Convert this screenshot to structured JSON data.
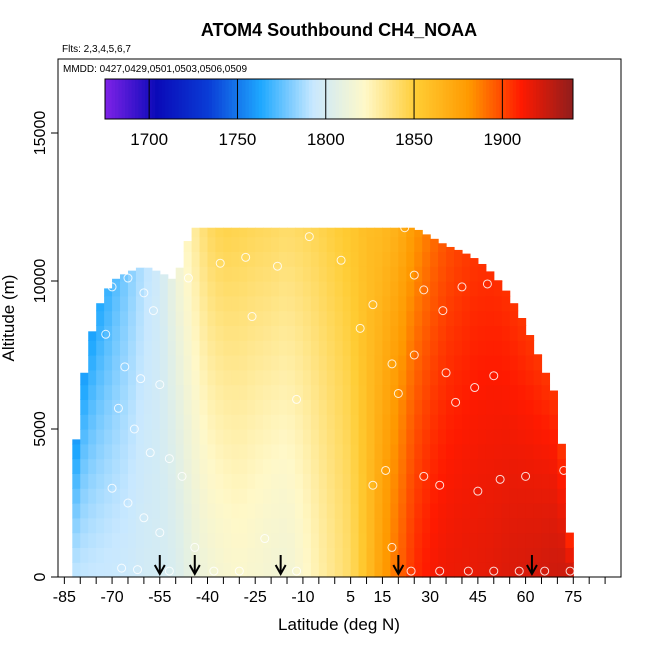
{
  "chart_data": {
    "type": "heatmap",
    "title": "ATOM4 Southbound CH4_NOAA",
    "annotations": [
      "Flts: 2,3,4,5,6,7",
      "MMDD: 0427,0429,0501,0503,0506,0509"
    ],
    "xlabel": "Latitude (deg N)",
    "ylabel": "Altitude (m)",
    "xlim": [
      -87,
      90
    ],
    "ylim": [
      0,
      17500
    ],
    "x_ticks": [
      -85,
      -70,
      -55,
      -40,
      -25,
      -10,
      5,
      15,
      30,
      45,
      60,
      75
    ],
    "x_minor_ticks": [
      -80,
      -75,
      -65,
      -60,
      -50,
      -45,
      -35,
      -30,
      -20,
      -15,
      -5,
      0,
      10,
      20,
      25,
      35,
      40,
      50,
      55,
      65,
      70,
      80,
      85
    ],
    "y_ticks": [
      0,
      5000,
      10000,
      15000
    ],
    "grid": false,
    "colorbar": {
      "min": 1675,
      "max": 1940,
      "ticks": [
        1700,
        1750,
        1800,
        1850,
        1900
      ],
      "colors": [
        "#7f22e8",
        "#0a0ab8",
        "#0a3dd6",
        "#1ea8ff",
        "#c8e8ff",
        "#fff8c8",
        "#ffcc33",
        "#ff9900",
        "#ff1a00",
        "#8f1d1d"
      ]
    },
    "section_profile": {
      "latitude": [
        -85,
        -80,
        -75,
        -70,
        -65,
        -60,
        -55,
        -50,
        -45,
        -40,
        -35,
        -30,
        -25,
        -20,
        -15,
        -10,
        -5,
        0,
        5,
        10,
        15,
        20,
        25,
        30,
        35,
        40,
        45,
        50,
        55,
        60,
        65,
        70,
        75
      ],
      "top_altitude": [
        0,
        6200,
        9000,
        10000,
        10300,
        10500,
        10300,
        10000,
        11800,
        11800,
        11800,
        11800,
        11800,
        11800,
        11800,
        11800,
        11800,
        11800,
        11800,
        11800,
        11800,
        11800,
        11800,
        11500,
        11200,
        11000,
        10700,
        10200,
        9500,
        8500,
        7200,
        6000,
        0
      ],
      "ch4_surface": [
        1790,
        1792,
        1793,
        1794,
        1795,
        1798,
        1799,
        1802,
        1810,
        1815,
        1818,
        1820,
        1818,
        1816,
        1815,
        1820,
        1828,
        1835,
        1842,
        1858,
        1878,
        1892,
        1906,
        1912,
        1915,
        1916,
        1917,
        1918,
        1920,
        1921,
        1922,
        1924,
        1924
      ],
      "ch4_top": [
        1758,
        1760,
        1762,
        1770,
        1780,
        1790,
        1797,
        1812,
        1828,
        1842,
        1847,
        1846,
        1844,
        1843,
        1841,
        1843,
        1846,
        1850,
        1854,
        1860,
        1862,
        1868,
        1880,
        1890,
        1898,
        1902,
        1905,
        1906,
        1905,
        1904,
        1904,
        1904,
        1904
      ]
    },
    "sample_points": [
      {
        "x": -72,
        "y": 10300
      },
      {
        "x": -70,
        "y": 9800
      },
      {
        "x": -65,
        "y": 10100
      },
      {
        "x": -60,
        "y": 9600
      },
      {
        "x": -57,
        "y": 9000
      },
      {
        "x": -80,
        "y": 9500
      },
      {
        "x": -72,
        "y": 8200
      },
      {
        "x": -66,
        "y": 7100
      },
      {
        "x": -61,
        "y": 6700
      },
      {
        "x": -55,
        "y": 6500
      },
      {
        "x": -68,
        "y": 5700
      },
      {
        "x": -63,
        "y": 5000
      },
      {
        "x": -58,
        "y": 4200
      },
      {
        "x": -52,
        "y": 4000
      },
      {
        "x": -48,
        "y": 3400
      },
      {
        "x": -70,
        "y": 3000
      },
      {
        "x": -65,
        "y": 2500
      },
      {
        "x": -60,
        "y": 2000
      },
      {
        "x": -55,
        "y": 1500
      },
      {
        "x": -44,
        "y": 1000
      },
      {
        "x": -67,
        "y": 300
      },
      {
        "x": -62,
        "y": 250
      },
      {
        "x": -52,
        "y": 200
      },
      {
        "x": -38,
        "y": 200
      },
      {
        "x": -30,
        "y": 200
      },
      {
        "x": -22,
        "y": 1300
      },
      {
        "x": -12,
        "y": 200
      },
      {
        "x": -46,
        "y": 10100
      },
      {
        "x": -36,
        "y": 10600
      },
      {
        "x": -28,
        "y": 10800
      },
      {
        "x": -18,
        "y": 10500
      },
      {
        "x": -8,
        "y": 11500
      },
      {
        "x": 2,
        "y": 10700
      },
      {
        "x": -26,
        "y": 8800
      },
      {
        "x": -12,
        "y": 6000
      },
      {
        "x": 8,
        "y": 8400
      },
      {
        "x": 12,
        "y": 9200
      },
      {
        "x": 18,
        "y": 7200
      },
      {
        "x": 16,
        "y": 3600
      },
      {
        "x": 12,
        "y": 3100
      },
      {
        "x": 22,
        "y": 11800
      },
      {
        "x": 25,
        "y": 10200
      },
      {
        "x": 28,
        "y": 9700
      },
      {
        "x": 34,
        "y": 9000
      },
      {
        "x": 40,
        "y": 9800
      },
      {
        "x": 48,
        "y": 9900
      },
      {
        "x": 58,
        "y": 9400
      },
      {
        "x": 63,
        "y": 8500
      },
      {
        "x": 25,
        "y": 7500
      },
      {
        "x": 35,
        "y": 6900
      },
      {
        "x": 44,
        "y": 6400
      },
      {
        "x": 50,
        "y": 6800
      },
      {
        "x": 70,
        "y": 7400
      },
      {
        "x": 20,
        "y": 6200
      },
      {
        "x": 38,
        "y": 5900
      },
      {
        "x": 28,
        "y": 3400
      },
      {
        "x": 33,
        "y": 3100
      },
      {
        "x": 45,
        "y": 2900
      },
      {
        "x": 52,
        "y": 3300
      },
      {
        "x": 60,
        "y": 3400
      },
      {
        "x": 72,
        "y": 3600
      },
      {
        "x": 18,
        "y": 1000
      },
      {
        "x": 24,
        "y": 200
      },
      {
        "x": 33,
        "y": 200
      },
      {
        "x": 42,
        "y": 200
      },
      {
        "x": 50,
        "y": 200
      },
      {
        "x": 58,
        "y": 200
      },
      {
        "x": 66,
        "y": 200
      },
      {
        "x": 74,
        "y": 200
      }
    ],
    "arrow_latitudes": [
      -55,
      -44,
      -17,
      20,
      62
    ]
  }
}
